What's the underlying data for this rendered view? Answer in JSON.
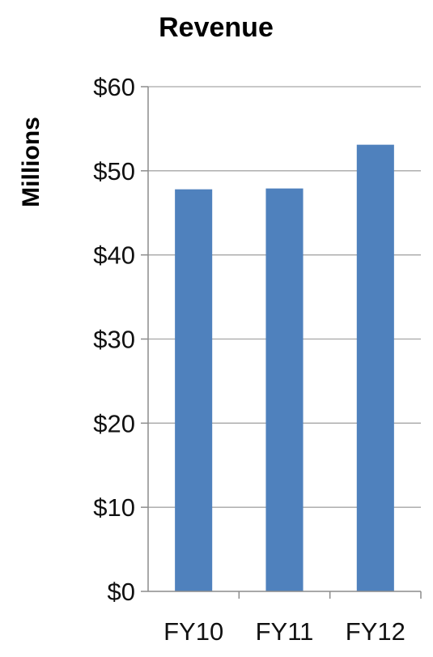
{
  "chart_data": {
    "type": "bar",
    "title": "Revenue",
    "xlabel": "",
    "ylabel": "Millions",
    "categories": [
      "FY10",
      "FY11",
      "FY12"
    ],
    "series": [
      {
        "values": [
          47.8,
          47.9,
          53.1
        ]
      }
    ],
    "ylim": [
      0,
      60
    ],
    "yticks": [
      0,
      10,
      20,
      30,
      40,
      50,
      60
    ],
    "ytick_labels": [
      "$0",
      "$10",
      "$20",
      "$30",
      "$40",
      "$50",
      "$60"
    ],
    "grid": true,
    "legend": "none",
    "bar_color": "#4f81bd"
  }
}
